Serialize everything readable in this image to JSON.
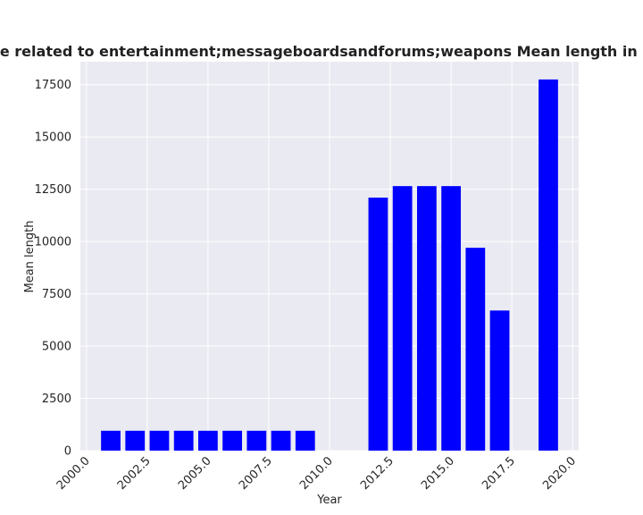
{
  "chart_data": {
    "type": "bar",
    "title": "Categories are related to entertainment;messageboardsandforums;weapons Mean length in privacy policies",
    "xlabel": "Year",
    "ylabel": "Mean length",
    "x": [
      2001,
      2002,
      2003,
      2004,
      2005,
      2006,
      2007,
      2008,
      2009,
      2012,
      2013,
      2014,
      2015,
      2016,
      2017,
      2019
    ],
    "values": [
      950,
      950,
      950,
      950,
      950,
      950,
      950,
      950,
      950,
      12100,
      12650,
      12650,
      12650,
      9700,
      6700,
      17750
    ],
    "xlim": [
      1999.75,
      2020.25
    ],
    "ylim": [
      0,
      18600
    ],
    "xticks": [
      "2000.0",
      "2002.5",
      "2005.0",
      "2007.5",
      "2010.0",
      "2012.5",
      "2015.0",
      "2017.5",
      "2020.0"
    ],
    "yticks": [
      "0",
      "2500",
      "5000",
      "7500",
      "10000",
      "12500",
      "15000",
      "17500"
    ],
    "grid": true,
    "background": "#eaeaf2",
    "bar_color": "#0000ff",
    "grid_color": "#ffffff"
  }
}
